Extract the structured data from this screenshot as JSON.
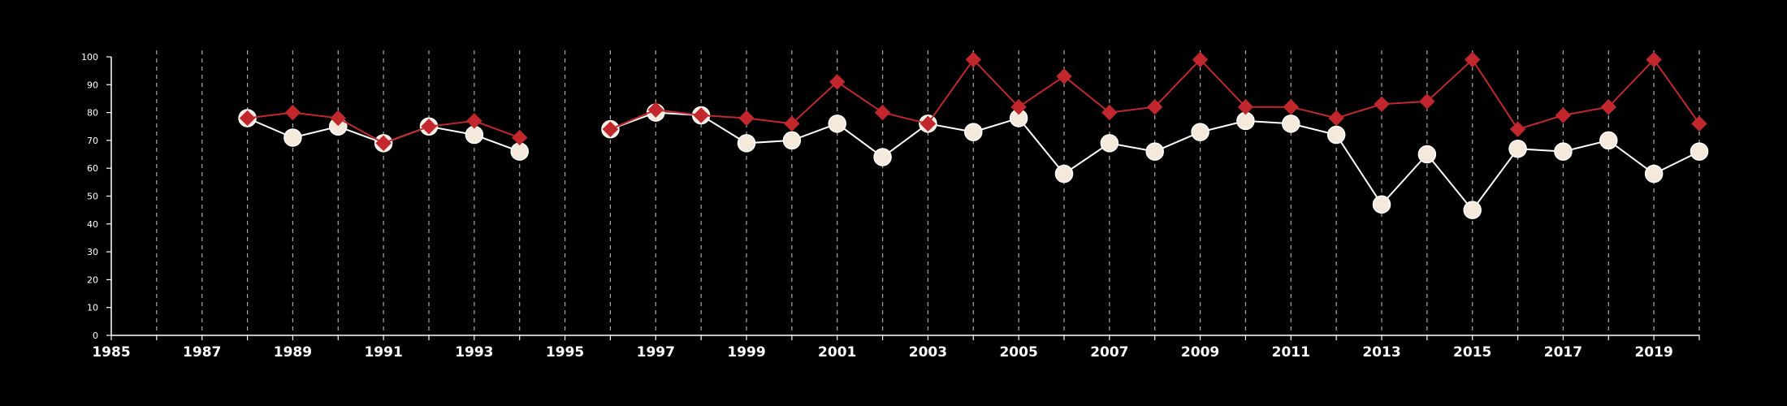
{
  "chart_data": {
    "type": "line",
    "title": "",
    "xlabel": "",
    "ylabel": "",
    "xlim": [
      1985,
      2020
    ],
    "ylim": [
      0,
      100
    ],
    "x_ticks": [
      1985,
      1987,
      1989,
      1991,
      1993,
      1995,
      1997,
      1999,
      2001,
      2003,
      2005,
      2007,
      2009,
      2011,
      2013,
      2015,
      2017,
      2019
    ],
    "y_ticks": [
      0,
      10,
      20,
      30,
      40,
      50,
      60,
      70,
      80,
      90,
      100
    ],
    "grid": {
      "vertical_dashed": true,
      "horizontal": false
    },
    "x": [
      1988,
      1989,
      1990,
      1991,
      1992,
      1993,
      1994,
      1995,
      1996,
      1997,
      1998,
      1999,
      2000,
      2001,
      2002,
      2003,
      2004,
      2005,
      2006,
      2007,
      2008,
      2009,
      2010,
      2011,
      2012,
      2013,
      2014,
      2015,
      2016,
      2017,
      2018,
      2019,
      2020
    ],
    "series": [
      {
        "marker": "circle",
        "color": "#ffffff",
        "fill": "#f5e9dc",
        "values": [
          78,
          71,
          75,
          69,
          75,
          72,
          66,
          null,
          74,
          80,
          79,
          69,
          70,
          76,
          64,
          76,
          73,
          78,
          58,
          69,
          66,
          73,
          77,
          76,
          72,
          47,
          65,
          45,
          67,
          66,
          70,
          58,
          66
        ]
      },
      {
        "marker": "diamond",
        "color": "#c1272d",
        "fill": "#c1272d",
        "values": [
          78,
          80,
          78,
          69,
          75,
          77,
          71,
          null,
          74,
          81,
          79,
          78,
          76,
          91,
          80,
          76,
          99,
          82,
          93,
          80,
          82,
          99,
          82,
          82,
          78,
          83,
          84,
          99,
          74,
          79,
          82,
          99,
          76
        ]
      }
    ]
  }
}
